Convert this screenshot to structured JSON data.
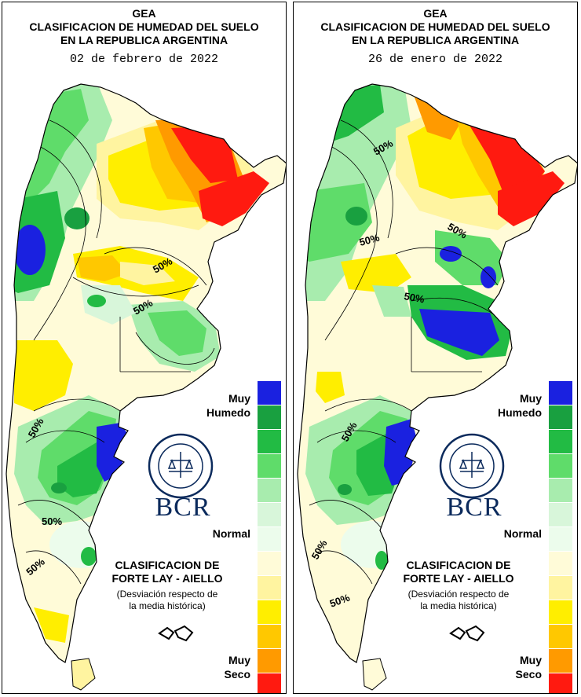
{
  "colors": {
    "muy_humedo": "#1a21e0",
    "humedo_3": "#19a040",
    "humedo_2": "#22bb44",
    "humedo_1": "#5fdc6a",
    "leve_humedo_2": "#a8ecae",
    "leve_humedo_1": "#d8f6da",
    "normal": "#ecfcec",
    "leve_seco_1": "#fffbd8",
    "leve_seco_2": "#fff4a0",
    "seco_1": "#ffee00",
    "seco_2": "#ffc800",
    "seco_3": "#ff9a00",
    "muy_seco": "#ff1a10"
  },
  "scale_order": [
    "muy_humedo",
    "humedo_3",
    "humedo_2",
    "humedo_1",
    "leve_humedo_2",
    "leve_humedo_1",
    "normal",
    "leve_seco_1",
    "leve_seco_2",
    "seco_1",
    "seco_2",
    "seco_3",
    "muy_seco"
  ],
  "panels": [
    {
      "title_line1": "GEA",
      "title_line2": "CLASIFICACION DE HUMEDAD DEL SUELO",
      "title_line3": "EN LA REPUBLICA ARGENTINA",
      "date": "02 de febrero de 2022",
      "pct_labels": [
        "50%",
        "50%",
        "50%",
        "50%",
        "50%"
      ],
      "legend": {
        "top": "Muy\nHumedo",
        "top_line1": "Muy",
        "top_line2": "Humedo",
        "middle": "Normal",
        "bottom_line1": "Muy",
        "bottom_line2": "Seco"
      },
      "method_line1": "CLASIFICACION DE",
      "method_line2": "FORTE LAY - AIELLO",
      "note_line1": "(Desviación respecto de",
      "note_line2": "la media histórica)",
      "logo_text": "BCR",
      "logo_ring_text": "BOLSA DE COMERCIO DE ROSARIO"
    },
    {
      "title_line1": "GEA",
      "title_line2": "CLASIFICACION DE HUMEDAD DEL SUELO",
      "title_line3": "EN LA REPUBLICA ARGENTINA",
      "date": "26 de enero de 2022",
      "pct_labels": [
        "50%",
        "50%",
        "50%",
        "50%",
        "50%",
        "50%",
        "50%"
      ],
      "legend": {
        "top_line1": "Muy",
        "top_line2": "Humedo",
        "middle": "Normal",
        "bottom_line1": "Muy",
        "bottom_line2": "Seco"
      },
      "method_line1": "CLASIFICACION DE",
      "method_line2": "FORTE LAY - AIELLO",
      "note_line1": "(Desviación respecto de",
      "note_line2": "la media histórica)",
      "logo_text": "BCR",
      "logo_ring_text": "BOLSA DE COMERCIO DE ROSARIO"
    }
  ]
}
